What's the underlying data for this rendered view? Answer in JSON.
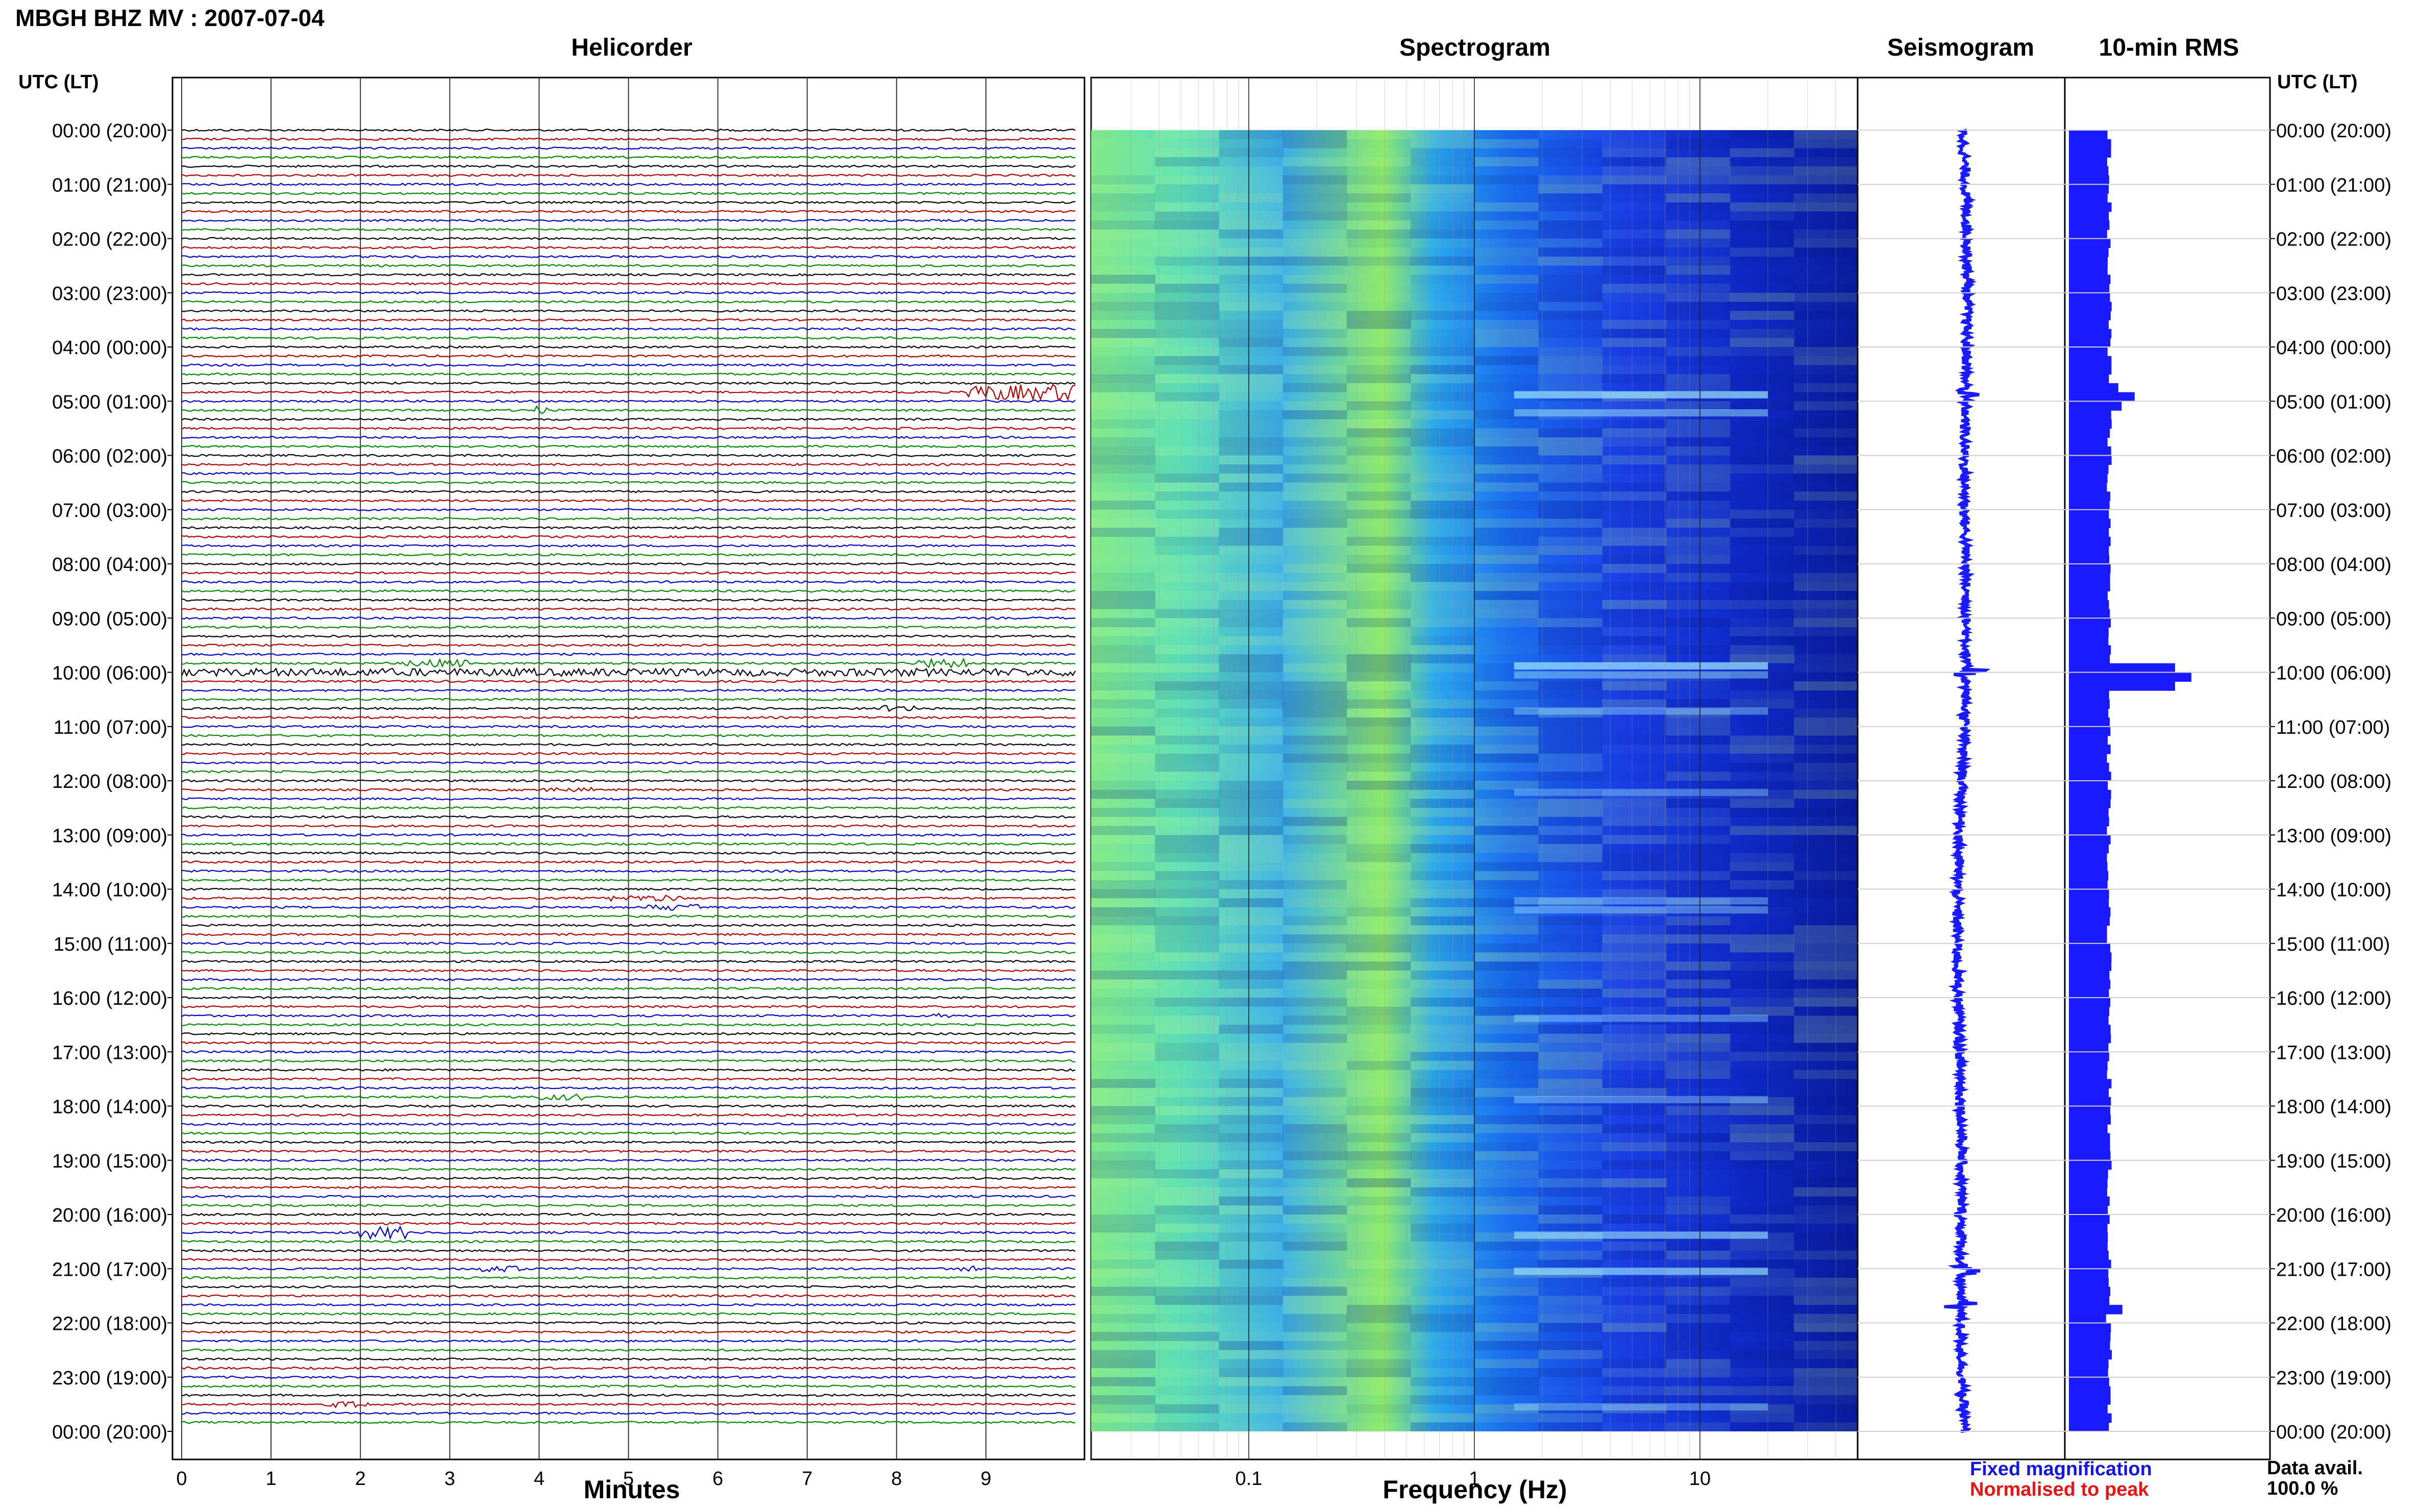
{
  "header": {
    "title": "MBGH BHZ MV : 2007-07-04",
    "utc_label_left": "UTC (LT)",
    "utc_label_right": "UTC (LT)"
  },
  "panels": {
    "helicorder": "Helicorder",
    "spectrogram": "Spectrogram",
    "seismogram": "Seismogram",
    "rms": "10-min RMS"
  },
  "axes": {
    "helicorder_xlabel": "Minutes",
    "spectrogram_xlabel": "Frequency (Hz)"
  },
  "legend": {
    "fixed": "Fixed magnification",
    "normalised": "Normalised to peak"
  },
  "availability": {
    "label": "Data avail.",
    "value": "100.0 %"
  },
  "colors": {
    "trace_cycle": [
      "#000000",
      "#b20000",
      "#0000c8",
      "#008c00"
    ],
    "seismogram": "#1a1aff",
    "rms": "#1a1aff",
    "spec_low": "#0a1aa0",
    "spec_mid": "#1e5cff",
    "spec_high": "#b4ff5a"
  },
  "chart_data": [
    {
      "type": "line",
      "title": "Helicorder",
      "xlabel": "Minutes",
      "x_ticks": [
        0,
        1,
        2,
        3,
        4,
        5,
        6,
        7,
        8,
        9
      ],
      "xlim": [
        0,
        10
      ],
      "rows_per_hour": 6,
      "hour_labels": [
        "00:00 (20:00)",
        "01:00 (21:00)",
        "02:00 (22:00)",
        "03:00 (23:00)",
        "04:00 (00:00)",
        "05:00 (01:00)",
        "06:00 (02:00)",
        "07:00 (03:00)",
        "08:00 (04:00)",
        "09:00 (05:00)",
        "10:00 (06:00)",
        "11:00 (07:00)",
        "12:00 (08:00)",
        "13:00 (09:00)",
        "14:00 (10:00)",
        "15:00 (11:00)",
        "16:00 (12:00)",
        "17:00 (13:00)",
        "18:00 (14:00)",
        "19:00 (15:00)",
        "20:00 (16:00)",
        "21:00 (17:00)",
        "22:00 (18:00)",
        "23:00 (19:00)",
        "00:00 (20:00)"
      ],
      "events": [
        {
          "row": 29,
          "minute_start": 8.8,
          "minute_end": 10.0,
          "amp": 1.0
        },
        {
          "row": 31,
          "minute_start": 3.95,
          "minute_end": 4.1,
          "amp": 0.6
        },
        {
          "row": 60,
          "minute_start": 0.0,
          "minute_end": 10.0,
          "amp": 0.5
        },
        {
          "row": 59,
          "minute_start": 2.5,
          "minute_end": 3.2,
          "amp": 0.5
        },
        {
          "row": 59,
          "minute_start": 8.2,
          "minute_end": 8.8,
          "amp": 0.6
        },
        {
          "row": 64,
          "minute_start": 7.8,
          "minute_end": 8.2,
          "amp": 0.4
        },
        {
          "row": 73,
          "minute_start": 4.0,
          "minute_end": 4.6,
          "amp": 0.3
        },
        {
          "row": 85,
          "minute_start": 4.8,
          "minute_end": 5.6,
          "amp": 0.4
        },
        {
          "row": 86,
          "minute_start": 5.2,
          "minute_end": 5.8,
          "amp": 0.4
        },
        {
          "row": 98,
          "minute_start": 8.4,
          "minute_end": 8.6,
          "amp": 0.4
        },
        {
          "row": 107,
          "minute_start": 4.0,
          "minute_end": 4.5,
          "amp": 0.4
        },
        {
          "row": 122,
          "minute_start": 2.0,
          "minute_end": 2.5,
          "amp": 0.8
        },
        {
          "row": 126,
          "minute_start": 3.3,
          "minute_end": 3.8,
          "amp": 0.4
        },
        {
          "row": 126,
          "minute_start": 8.7,
          "minute_end": 8.9,
          "amp": 0.4
        },
        {
          "row": 141,
          "minute_start": 1.5,
          "minute_end": 2.1,
          "amp": 0.4
        }
      ]
    },
    {
      "type": "heatmap",
      "title": "Spectrogram",
      "xlabel": "Frequency (Hz)",
      "x_scale": "log",
      "xlim": [
        0.02,
        50
      ],
      "x_tick_labels": [
        "0.1",
        "1",
        "10"
      ],
      "x_tick_values": [
        0.1,
        1,
        10
      ]
    },
    {
      "type": "line",
      "title": "Seismogram",
      "spikes_hours": [
        4.85,
        10.0,
        21.0,
        21.65
      ]
    },
    {
      "type": "bar",
      "title": "10-min RMS",
      "orientation": "horizontal",
      "baseline": 0.33,
      "peaks": [
        {
          "hour": 4.85,
          "value": 0.55
        },
        {
          "hour": 10.0,
          "value": 1.0
        },
        {
          "hour": 21.65,
          "value": 0.45
        }
      ]
    }
  ]
}
